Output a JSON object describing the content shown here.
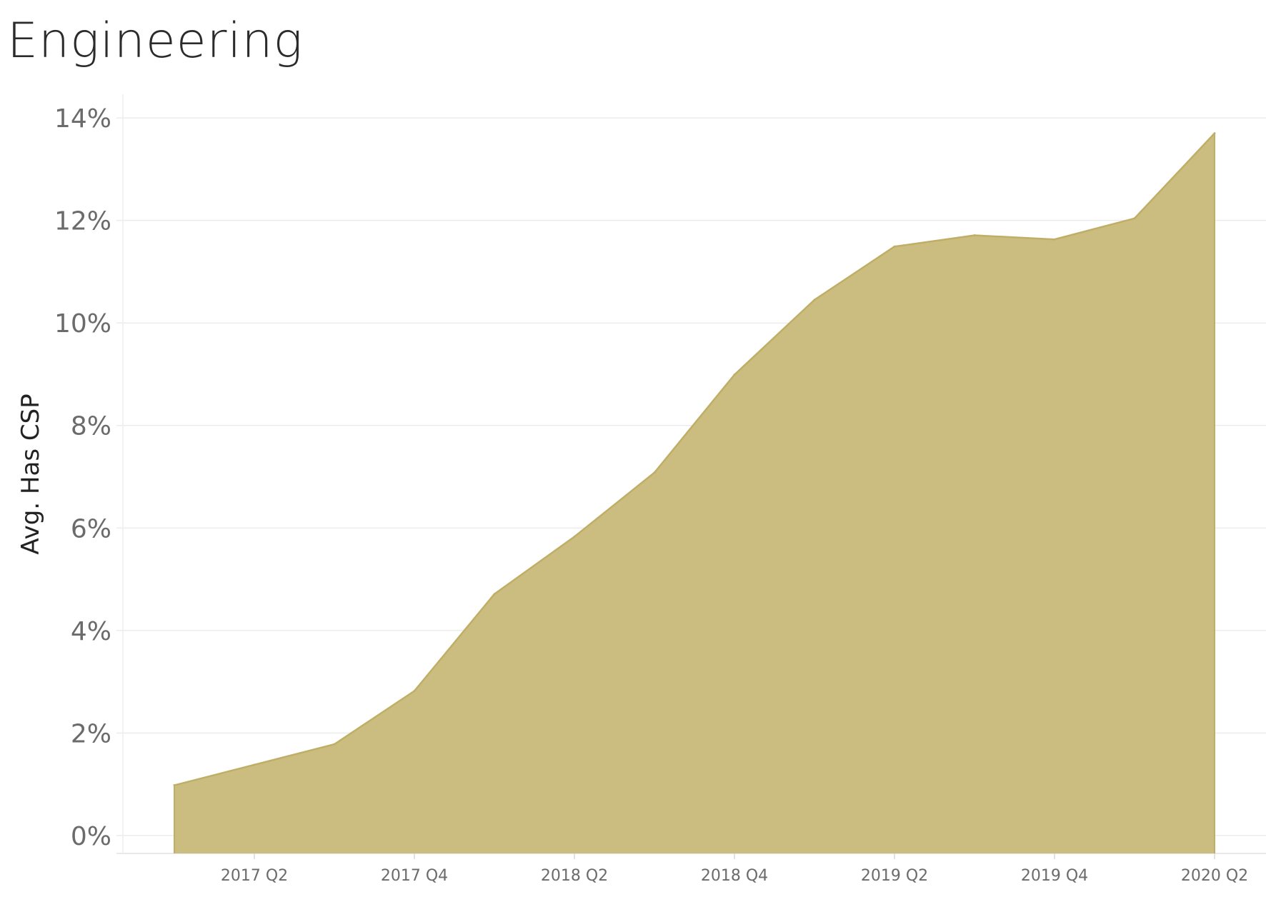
{
  "chart_data": {
    "type": "area",
    "title": "Engineering",
    "xlabel": "",
    "ylabel": "Avg. Has CSP",
    "x": [
      "2017 Q1",
      "2017 Q2",
      "2017 Q3",
      "2017 Q4",
      "2018 Q1",
      "2018 Q2",
      "2018 Q3",
      "2018 Q4",
      "2019 Q1",
      "2019 Q2",
      "2019 Q3",
      "2019 Q4",
      "2020 Q1",
      "2020 Q2"
    ],
    "x_tick_labels": [
      "2017 Q2",
      "2017 Q4",
      "2018 Q2",
      "2018 Q4",
      "2019 Q2",
      "2019 Q4",
      "2020 Q2"
    ],
    "values": [
      0.98,
      1.38,
      1.78,
      2.82,
      4.71,
      5.83,
      7.08,
      8.99,
      10.45,
      11.49,
      11.71,
      11.63,
      12.04,
      13.7
    ],
    "y_unit": "%",
    "ylim": [
      -0.35,
      14.35
    ],
    "y_ticks": [
      0,
      2,
      4,
      6,
      8,
      10,
      12,
      14
    ],
    "y_tick_labels": [
      "0%",
      "2%",
      "4%",
      "6%",
      "8%",
      "10%",
      "12%",
      "14%"
    ],
    "grid": true,
    "colors": {
      "area_fill": "#cbbd80",
      "area_stroke": "#bfae66",
      "grid": "#ececec"
    }
  }
}
